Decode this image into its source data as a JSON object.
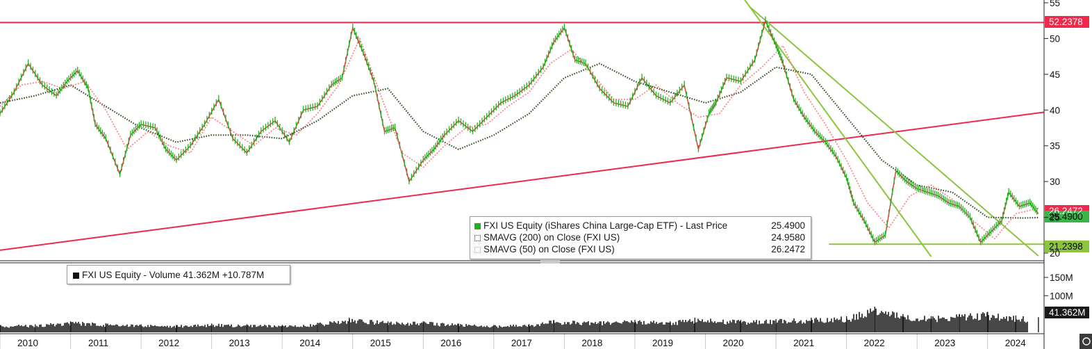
{
  "price_legend": {
    "rows": [
      {
        "label": "FXI US Equity (iShares China Large-Cap ETF) - Last Price",
        "value": "25.4900",
        "color": "#22b022"
      },
      {
        "label": "SMAVG (200)  on Close (FXI US)",
        "value": "24.9580",
        "color": "#2e4a1e"
      },
      {
        "label": "SMAVG (50)  on Close (FXI US)",
        "value": "26.2472",
        "color": "#ff7b7b"
      }
    ]
  },
  "volume_legend": {
    "label": "FXI US Equity - Volume 41.362M  +10.787M"
  },
  "y_badges": {
    "resistance": {
      "text": "52.2378",
      "color": "#f0284a"
    },
    "sma50": {
      "text": "26.2472",
      "color": "#f0284a"
    },
    "last": {
      "text": "25.4900",
      "color": "#39b54a"
    },
    "support": {
      "text": "21.2398",
      "color": "#8bc53f"
    },
    "volume": {
      "text": "41.362M",
      "color": "#1a1a1a"
    }
  },
  "chart_data": [
    {
      "type": "line",
      "title": "",
      "xlabel": "",
      "ylabel": "",
      "x_ticks": [
        "2010",
        "2011",
        "2012",
        "2013",
        "2014",
        "2015",
        "2016",
        "2017",
        "2018",
        "2019",
        "2020",
        "2021",
        "2022",
        "2023",
        "2024"
      ],
      "y_ticks": [
        "20",
        "25",
        "30",
        "35",
        "40",
        "45",
        "50",
        "55"
      ],
      "ylim": [
        19.5,
        55.5
      ],
      "xlim": [
        2010.0,
        2024.8
      ],
      "series": [
        {
          "name": "FXI US Equity (iShares China Large-Cap ETF) - Last Price",
          "x": [
            2010.0,
            2010.2,
            2010.4,
            2010.6,
            2010.8,
            2010.95,
            2011.1,
            2011.25,
            2011.35,
            2011.5,
            2011.7,
            2011.85,
            2012.0,
            2012.2,
            2012.35,
            2012.5,
            2012.7,
            2012.9,
            2013.1,
            2013.3,
            2013.5,
            2013.7,
            2013.9,
            2014.1,
            2014.3,
            2014.5,
            2014.7,
            2014.85,
            2015.0,
            2015.15,
            2015.3,
            2015.45,
            2015.6,
            2015.8,
            2016.0,
            2016.15,
            2016.3,
            2016.5,
            2016.7,
            2016.9,
            2017.1,
            2017.3,
            2017.5,
            2017.7,
            2017.85,
            2018.0,
            2018.15,
            2018.3,
            2018.5,
            2018.7,
            2018.9,
            2019.1,
            2019.3,
            2019.5,
            2019.7,
            2019.9,
            2020.05,
            2020.15,
            2020.3,
            2020.5,
            2020.7,
            2020.85,
            2021.0,
            2021.1,
            2021.25,
            2021.4,
            2021.55,
            2021.7,
            2021.85,
            2022.0,
            2022.1,
            2022.25,
            2022.4,
            2022.55,
            2022.7,
            2022.85,
            2023.0,
            2023.15,
            2023.3,
            2023.45,
            2023.6,
            2023.75,
            2023.9,
            2024.05,
            2024.2,
            2024.3,
            2024.45,
            2024.6,
            2024.72
          ],
          "values": [
            39.5,
            42.5,
            46.5,
            43.5,
            42.0,
            44.0,
            45.5,
            43.0,
            38.0,
            36.0,
            31.0,
            36.5,
            38.0,
            37.5,
            34.5,
            33.0,
            35.0,
            38.0,
            41.5,
            36.0,
            34.0,
            37.0,
            38.5,
            35.5,
            40.0,
            40.5,
            43.5,
            44.5,
            51.5,
            48.0,
            44.0,
            37.0,
            37.5,
            30.0,
            33.0,
            34.5,
            36.5,
            38.5,
            37.0,
            39.0,
            41.0,
            42.0,
            43.5,
            46.0,
            49.5,
            51.5,
            47.0,
            46.5,
            43.0,
            41.0,
            40.5,
            44.5,
            42.0,
            41.0,
            43.5,
            34.5,
            39.5,
            41.0,
            44.5,
            44.0,
            47.0,
            52.5,
            49.0,
            46.5,
            41.5,
            39.0,
            37.0,
            35.5,
            33.5,
            30.5,
            27.0,
            24.5,
            21.5,
            22.5,
            31.5,
            30.0,
            29.0,
            28.5,
            28.0,
            27.0,
            26.5,
            25.0,
            21.5,
            23.0,
            24.5,
            28.5,
            26.5,
            27.0,
            25.49
          ]
        },
        {
          "name": "SMAVG (200)  on Close (FXI US)",
          "x": [
            2010.0,
            2010.5,
            2011.0,
            2011.5,
            2012.0,
            2012.5,
            2013.0,
            2013.5,
            2014.0,
            2014.5,
            2015.0,
            2015.5,
            2016.0,
            2016.5,
            2017.0,
            2017.5,
            2018.0,
            2018.5,
            2019.0,
            2019.5,
            2020.0,
            2020.5,
            2021.0,
            2021.5,
            2022.0,
            2022.5,
            2023.0,
            2023.5,
            2024.0,
            2024.5,
            2024.72
          ],
          "values": [
            41.0,
            42.0,
            43.5,
            40.5,
            37.5,
            35.5,
            36.5,
            36.5,
            36.0,
            38.5,
            42.0,
            43.0,
            37.0,
            34.5,
            36.5,
            39.5,
            44.5,
            46.5,
            44.0,
            42.5,
            41.0,
            42.5,
            46.0,
            45.0,
            39.0,
            33.0,
            29.5,
            28.5,
            25.0,
            24.9,
            24.958
          ]
        },
        {
          "name": "SMAVG (50)  on Close (FXI US)",
          "x": [
            2010.0,
            2010.3,
            2010.6,
            2010.9,
            2011.2,
            2011.5,
            2011.8,
            2012.1,
            2012.4,
            2012.7,
            2013.0,
            2013.3,
            2013.6,
            2013.9,
            2014.2,
            2014.5,
            2014.8,
            2015.1,
            2015.4,
            2015.7,
            2016.0,
            2016.3,
            2016.6,
            2016.9,
            2017.2,
            2017.5,
            2017.8,
            2018.1,
            2018.4,
            2018.7,
            2019.0,
            2019.3,
            2019.6,
            2019.9,
            2020.2,
            2020.5,
            2020.8,
            2021.1,
            2021.4,
            2021.7,
            2022.0,
            2022.3,
            2022.6,
            2022.9,
            2023.2,
            2023.5,
            2023.8,
            2024.1,
            2024.4,
            2024.72
          ],
          "values": [
            40.5,
            43.5,
            44.0,
            43.0,
            44.0,
            40.0,
            34.5,
            37.0,
            35.0,
            34.0,
            39.0,
            37.0,
            35.0,
            37.5,
            36.5,
            39.5,
            43.5,
            50.0,
            42.0,
            34.0,
            32.0,
            35.0,
            37.5,
            38.0,
            40.5,
            42.5,
            46.5,
            48.5,
            45.0,
            41.5,
            41.5,
            43.5,
            41.0,
            39.0,
            39.5,
            43.5,
            46.0,
            49.0,
            42.5,
            38.0,
            33.0,
            27.0,
            23.5,
            28.0,
            29.5,
            27.5,
            24.5,
            22.0,
            25.5,
            26.2472
          ]
        }
      ],
      "trend_lines": [
        {
          "name": "resistance",
          "x": [
            2010.0,
            2024.8
          ],
          "values": [
            52.2378,
            52.2378
          ],
          "color": "#f0284a"
        },
        {
          "name": "rising-support",
          "x": [
            2010.0,
            2024.8
          ],
          "values": [
            20.4,
            39.7
          ],
          "color": "#f0284a"
        },
        {
          "name": "downtrend-1",
          "x": [
            2020.55,
            2023.2
          ],
          "values": [
            55.5,
            19.5
          ],
          "color": "#8bc53f"
        },
        {
          "name": "downtrend-2",
          "x": [
            2020.62,
            2024.72
          ],
          "values": [
            54.5,
            19.6
          ],
          "color": "#8bc53f"
        },
        {
          "name": "floor",
          "x": [
            2021.75,
            2024.8
          ],
          "values": [
            21.2398,
            21.2398
          ],
          "color": "#8bc53f"
        }
      ]
    },
    {
      "type": "bar",
      "title": "",
      "xlabel": "",
      "ylabel": "",
      "y_ticks": [
        "100M",
        "150M"
      ],
      "ylim": [
        0,
        190
      ],
      "x": [
        2010.0,
        2010.5,
        2011.0,
        2011.5,
        2012.0,
        2012.5,
        2013.0,
        2013.5,
        2014.0,
        2014.5,
        2014.95,
        2015.5,
        2016.0,
        2016.5,
        2017.0,
        2017.5,
        2017.85,
        2018.5,
        2019.0,
        2019.5,
        2019.85,
        2020.5,
        2021.0,
        2021.5,
        2022.0,
        2022.4,
        2022.8,
        2023.2,
        2023.6,
        2024.0,
        2024.4,
        2024.72
      ],
      "values": [
        20,
        22,
        30,
        25,
        22,
        20,
        24,
        22,
        20,
        26,
        40,
        30,
        30,
        24,
        20,
        22,
        34,
        30,
        34,
        30,
        40,
        34,
        36,
        40,
        44,
        70,
        50,
        44,
        50,
        56,
        46,
        41.362
      ]
    }
  ]
}
